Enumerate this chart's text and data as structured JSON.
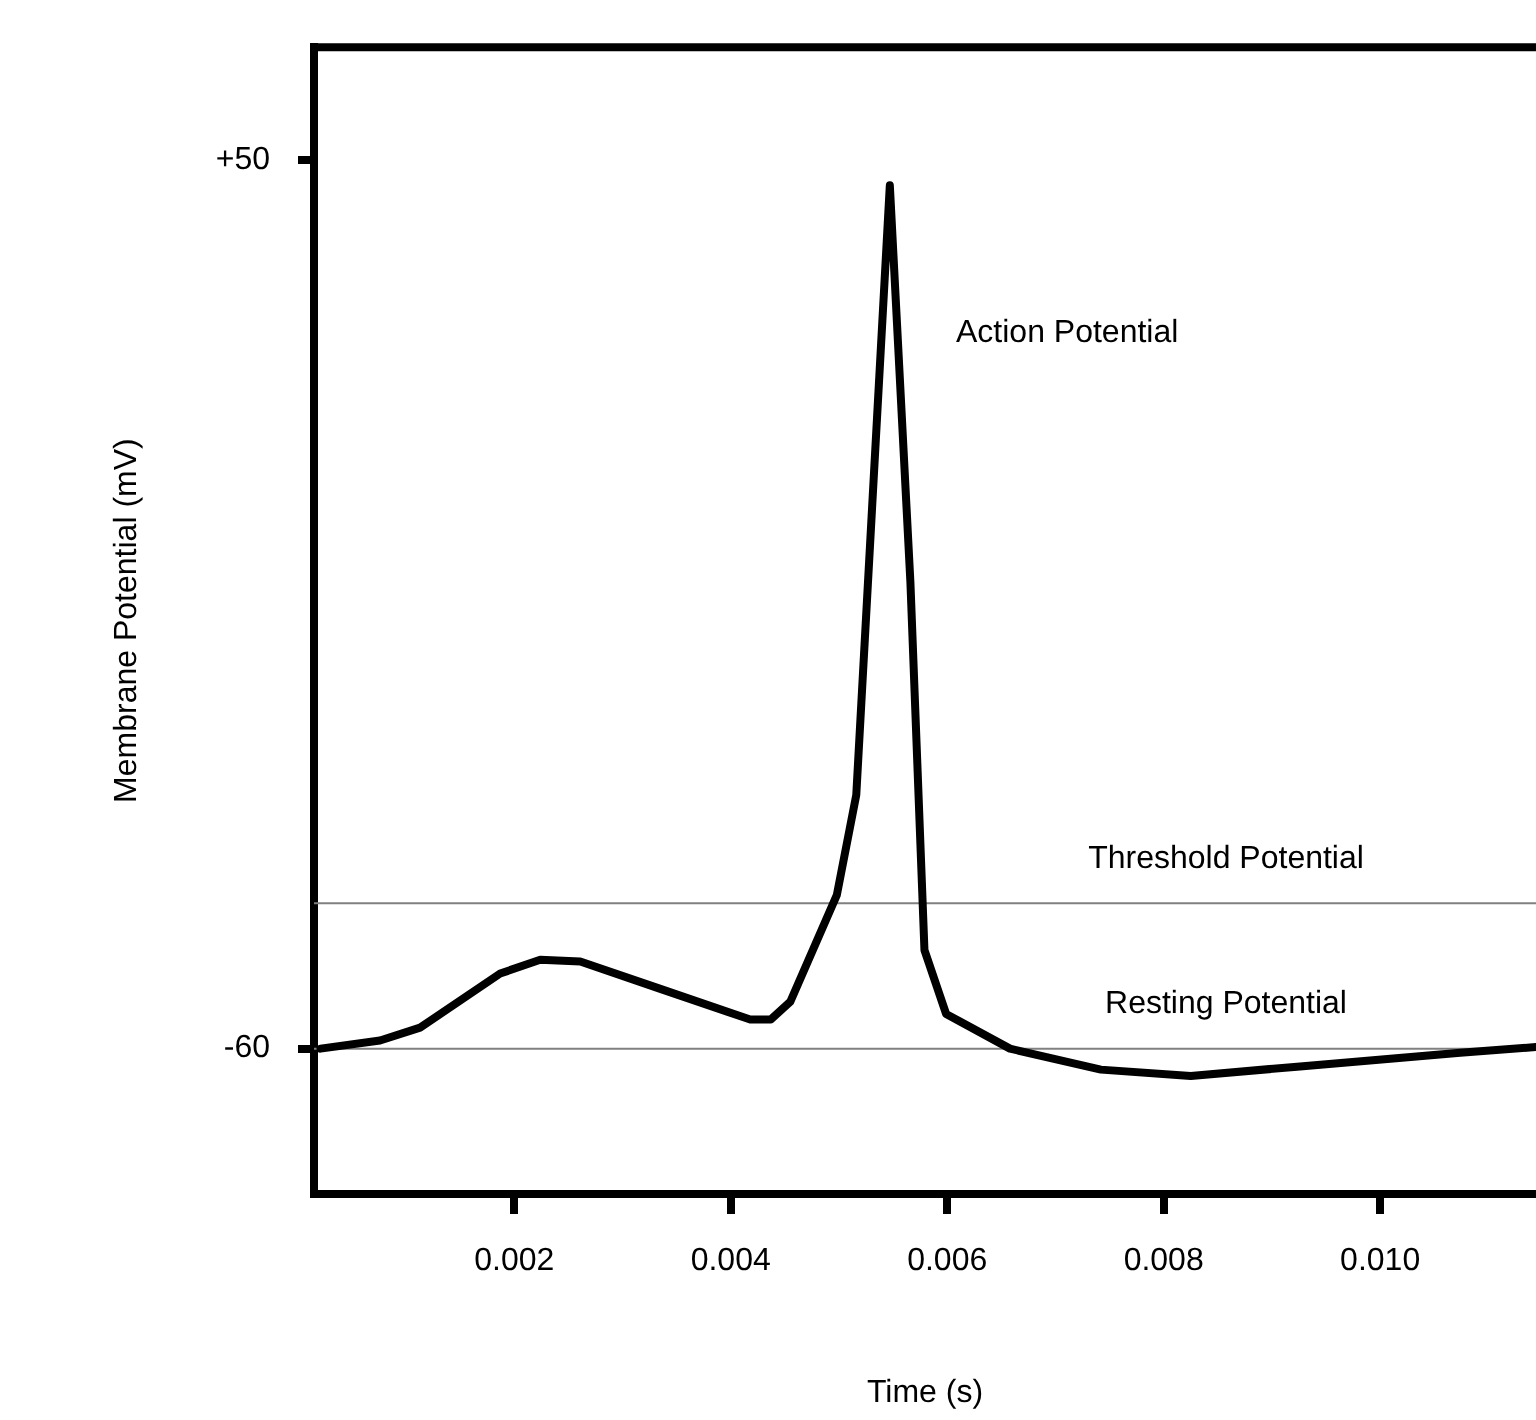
{
  "chart_data": {
    "type": "line",
    "xlabel": "Time (s)",
    "ylabel": "Membrane Potential (mV)",
    "x": [
      0.00021,
      0.00076,
      0.00113,
      0.00187,
      0.00224,
      0.00261,
      0.00335,
      0.00418,
      0.00437,
      0.00455,
      0.00498,
      0.00516,
      0.00547,
      0.00566,
      0.00579,
      0.00599,
      0.00658,
      0.00742,
      0.00825,
      0.00926,
      0.01074,
      0.01144
    ],
    "series": [
      {
        "color": "#000000",
        "values": [
          -60,
          -59,
          -57.4,
          -50.7,
          -49,
          -49.2,
          -52.6,
          -56.4,
          -56.4,
          -54.2,
          -41,
          -28.6,
          46.9,
          -2.2,
          -47.8,
          -55.7,
          -60,
          -62.6,
          -63.4,
          -62.2,
          -60.5,
          -59.8
        ]
      }
    ],
    "xlim": [
      0.00015,
      0.01144
    ],
    "xticks": [
      0.002,
      0.004,
      0.006,
      0.008,
      {
        "value": 0.01,
        "label": "0.010"
      }
    ],
    "ylim": [
      -78,
      64
    ],
    "yticks": [
      {
        "value": 50,
        "label": "+50"
      },
      -60
    ],
    "ref_lines": [
      {
        "axis": "y",
        "value": -42,
        "label": "Threshold Potential",
        "color": "#808080"
      },
      {
        "axis": "y",
        "value": -60,
        "label": "Resting Potential",
        "color": "#808080"
      }
    ],
    "annotations": [
      "Action Potential"
    ],
    "grid": false,
    "legend": false,
    "marker": "none",
    "line_style": "solid"
  }
}
